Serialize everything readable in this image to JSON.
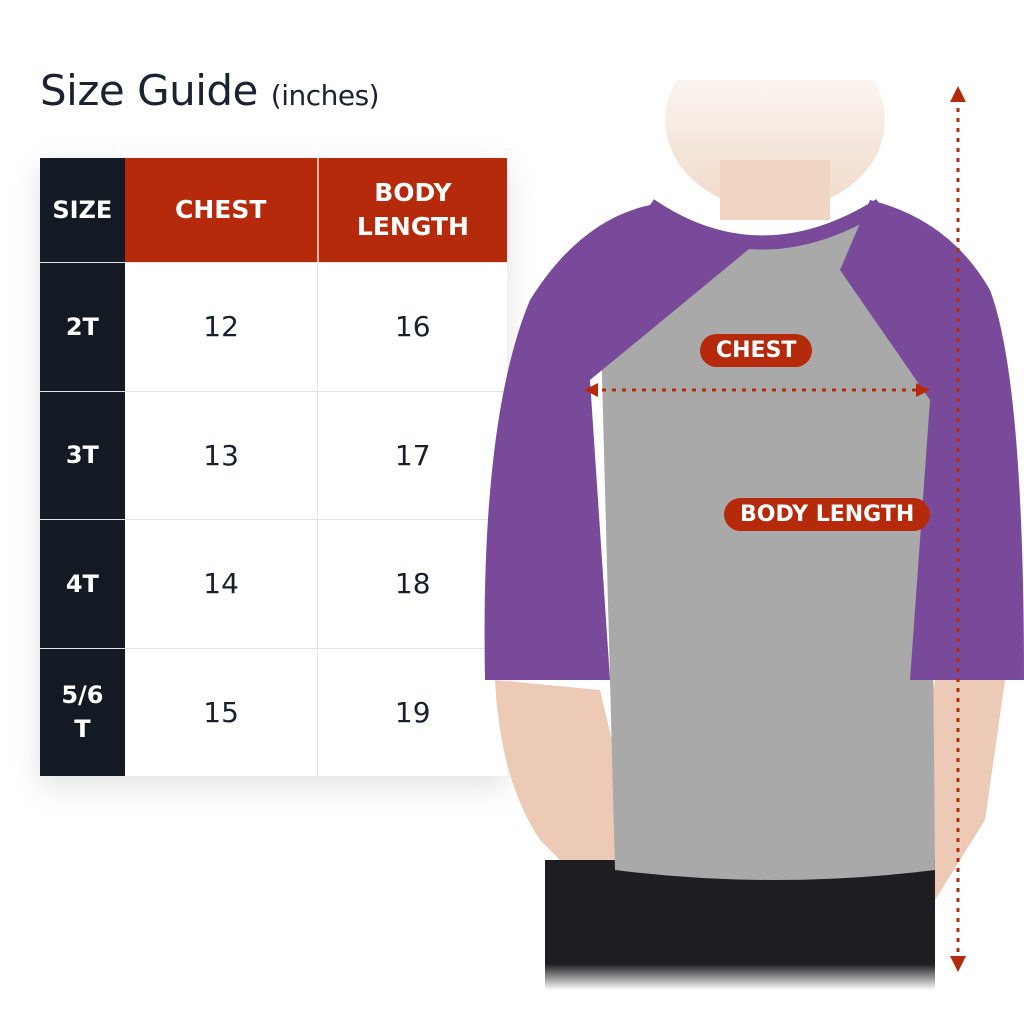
{
  "title": {
    "main": "Size Guide",
    "unit": "(inches)"
  },
  "table": {
    "headers": [
      "SIZE",
      "CHEST",
      "BODY\nLENGTH"
    ],
    "rows": [
      {
        "size": "2T",
        "chest": "12",
        "body_length": "16"
      },
      {
        "size": "3T",
        "chest": "13",
        "body_length": "17"
      },
      {
        "size": "4T",
        "chest": "14",
        "body_length": "18"
      },
      {
        "size": "5/6\nT",
        "chest": "15",
        "body_length": "19"
      }
    ]
  },
  "labels": {
    "chest": "CHEST",
    "body_length": "BODY LENGTH"
  },
  "colors": {
    "header_red": "#b52a0a",
    "size_column": "#141a23",
    "shirt_body": "#a9a9a9",
    "sleeves": "#7a4a9a"
  }
}
